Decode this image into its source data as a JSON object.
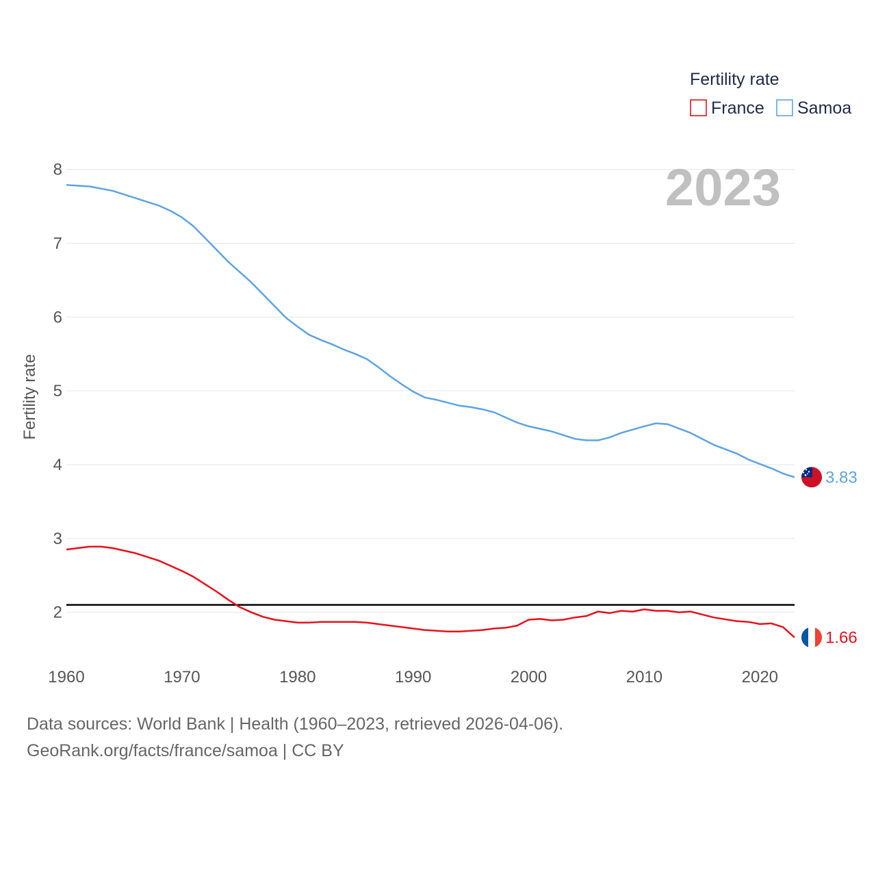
{
  "chart_data": {
    "type": "line",
    "title": "",
    "legend_title": "Fertility rate",
    "legend_position": "top-right",
    "xlabel": "",
    "ylabel": "Fertility rate",
    "year_label": "2023",
    "xlim": [
      1960,
      2023
    ],
    "ylim": [
      1.45,
      8.2
    ],
    "yticks": [
      2,
      3,
      4,
      5,
      6,
      7,
      8
    ],
    "xticks": [
      1960,
      1970,
      1980,
      1990,
      2000,
      2010,
      2020
    ],
    "reference_line": 2.1,
    "grid": true,
    "series": [
      {
        "name": "France",
        "color": "#e8111b",
        "end_label": "1.66",
        "flag": "france-flag",
        "points": [
          [
            1960,
            2.85
          ],
          [
            1962,
            2.89
          ],
          [
            1963,
            2.89
          ],
          [
            1964,
            2.87
          ],
          [
            1966,
            2.8
          ],
          [
            1968,
            2.7
          ],
          [
            1970,
            2.56
          ],
          [
            1971,
            2.48
          ],
          [
            1972,
            2.38
          ],
          [
            1973,
            2.28
          ],
          [
            1974,
            2.17
          ],
          [
            1975,
            2.07
          ],
          [
            1976,
            2.0
          ],
          [
            1977,
            1.94
          ],
          [
            1978,
            1.9
          ],
          [
            1980,
            1.86
          ],
          [
            1981,
            1.86
          ],
          [
            1982,
            1.87
          ],
          [
            1984,
            1.87
          ],
          [
            1985,
            1.87
          ],
          [
            1986,
            1.86
          ],
          [
            1988,
            1.82
          ],
          [
            1990,
            1.78
          ],
          [
            1991,
            1.76
          ],
          [
            1993,
            1.74
          ],
          [
            1994,
            1.74
          ],
          [
            1996,
            1.76
          ],
          [
            1997,
            1.78
          ],
          [
            1998,
            1.79
          ],
          [
            1999,
            1.82
          ],
          [
            2000,
            1.9
          ],
          [
            2001,
            1.91
          ],
          [
            2002,
            1.89
          ],
          [
            2003,
            1.9
          ],
          [
            2004,
            1.93
          ],
          [
            2005,
            1.95
          ],
          [
            2006,
            2.01
          ],
          [
            2007,
            1.99
          ],
          [
            2008,
            2.02
          ],
          [
            2009,
            2.01
          ],
          [
            2010,
            2.04
          ],
          [
            2011,
            2.02
          ],
          [
            2012,
            2.02
          ],
          [
            2013,
            2.0
          ],
          [
            2014,
            2.01
          ],
          [
            2016,
            1.93
          ],
          [
            2018,
            1.88
          ],
          [
            2019,
            1.87
          ],
          [
            2020,
            1.84
          ],
          [
            2021,
            1.85
          ],
          [
            2022,
            1.8
          ],
          [
            2023,
            1.66
          ]
        ]
      },
      {
        "name": "Samoa",
        "color": "#5ea3e3",
        "end_label": "3.83",
        "flag": "samoa-flag",
        "points": [
          [
            1960,
            7.79
          ],
          [
            1962,
            7.77
          ],
          [
            1964,
            7.71
          ],
          [
            1966,
            7.61
          ],
          [
            1968,
            7.51
          ],
          [
            1969,
            7.44
          ],
          [
            1970,
            7.35
          ],
          [
            1971,
            7.23
          ],
          [
            1972,
            7.07
          ],
          [
            1974,
            6.75
          ],
          [
            1976,
            6.47
          ],
          [
            1978,
            6.15
          ],
          [
            1979,
            5.99
          ],
          [
            1980,
            5.87
          ],
          [
            1981,
            5.76
          ],
          [
            1982,
            5.69
          ],
          [
            1983,
            5.63
          ],
          [
            1984,
            5.56
          ],
          [
            1985,
            5.5
          ],
          [
            1986,
            5.43
          ],
          [
            1987,
            5.32
          ],
          [
            1988,
            5.2
          ],
          [
            1989,
            5.09
          ],
          [
            1990,
            4.99
          ],
          [
            1991,
            4.91
          ],
          [
            1992,
            4.88
          ],
          [
            1993,
            4.84
          ],
          [
            1994,
            4.8
          ],
          [
            1995,
            4.78
          ],
          [
            1996,
            4.75
          ],
          [
            1997,
            4.71
          ],
          [
            1998,
            4.64
          ],
          [
            1999,
            4.57
          ],
          [
            2000,
            4.52
          ],
          [
            2002,
            4.45
          ],
          [
            2004,
            4.35
          ],
          [
            2005,
            4.33
          ],
          [
            2006,
            4.33
          ],
          [
            2007,
            4.37
          ],
          [
            2008,
            4.43
          ],
          [
            2010,
            4.52
          ],
          [
            2011,
            4.56
          ],
          [
            2012,
            4.55
          ],
          [
            2014,
            4.43
          ],
          [
            2016,
            4.27
          ],
          [
            2018,
            4.15
          ],
          [
            2019,
            4.07
          ],
          [
            2020,
            4.01
          ],
          [
            2021,
            3.95
          ],
          [
            2022,
            3.88
          ],
          [
            2023,
            3.83
          ]
        ]
      }
    ]
  },
  "footer": {
    "line1": "Data sources: World Bank | Health (1960–2023, retrieved 2026-04-06).",
    "line2": "GeoRank.org/facts/france/samoa | CC BY"
  }
}
